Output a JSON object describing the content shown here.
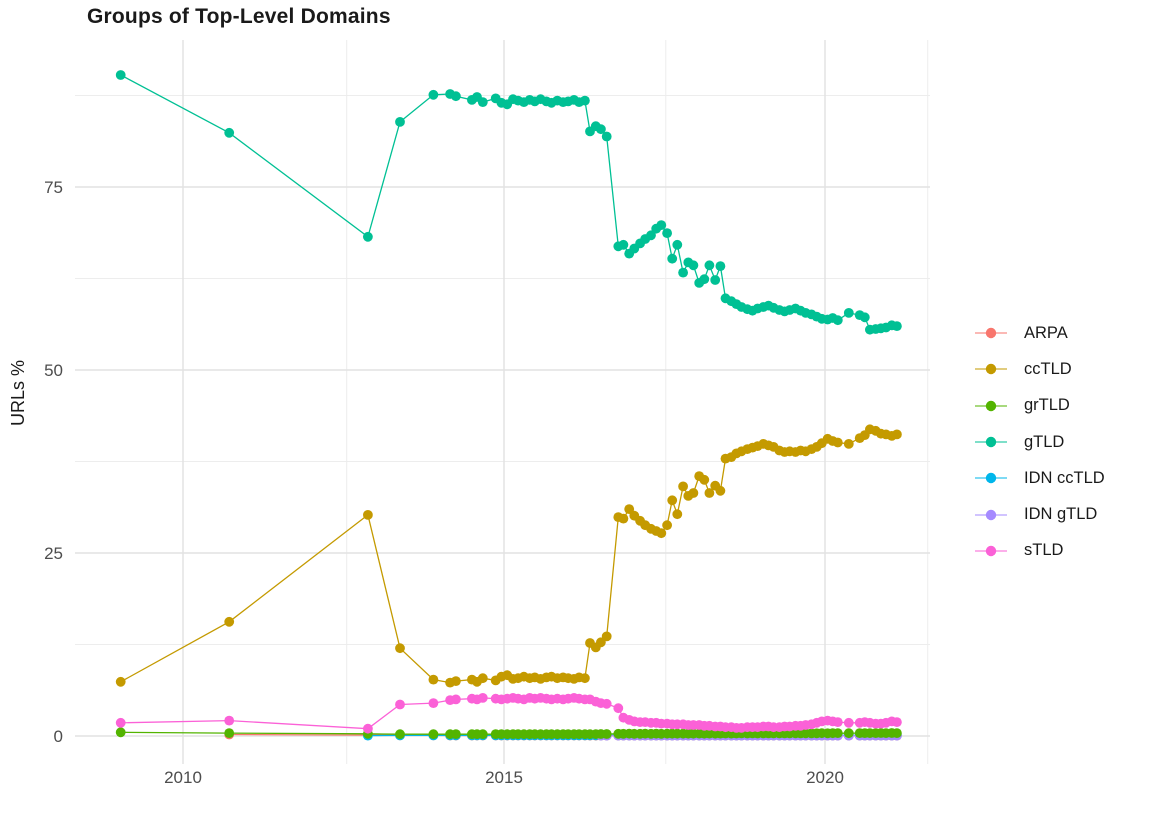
{
  "title": "Groups of Top-Level Domains",
  "axes": {
    "y_label": "URLs %",
    "y_tick_labels": [
      "0",
      "25",
      "50",
      "75"
    ],
    "x_tick_labels": [
      "2010",
      "2015",
      "2020"
    ]
  },
  "legend": {
    "items": [
      "ARPA",
      "ccTLD",
      "grTLD",
      "gTLD",
      "IDN ccTLD",
      "IDN gTLD",
      "sTLD"
    ]
  },
  "chart_data": {
    "type": "line",
    "title": "Groups of Top-Level Domains",
    "xlabel": "",
    "ylabel": "URLs %",
    "xlim": [
      2008.32,
      2021.64
    ],
    "ylim": [
      -3.8,
      95.1
    ],
    "x_ticks": [
      2010,
      2015,
      2020
    ],
    "y_ticks": [
      0,
      25,
      50,
      75
    ],
    "grid": {
      "on": true,
      "x_minor": [
        2012.55,
        2017.52,
        2021.6
      ],
      "y_minor": [
        12.5,
        37.5,
        62.5,
        87.5
      ],
      "major_color": "#e2e2e2",
      "minor_color": "#ededed"
    },
    "legend_position": "right",
    "tick_label_color": "#4d4d4d",
    "x_all": [
      2009.03,
      2010.72,
      2012.88,
      2013.38,
      2013.9,
      2014.16,
      2014.25,
      2014.5,
      2014.58,
      2014.67,
      2014.87,
      2014.96,
      2015.05,
      2015.14,
      2015.22,
      2015.31,
      2015.4,
      2015.48,
      2015.57,
      2015.66,
      2015.74,
      2015.83,
      2015.92,
      2016.0,
      2016.09,
      2016.17,
      2016.26,
      2016.34,
      2016.43,
      2016.51,
      2016.6,
      2016.78,
      2016.86,
      2016.95,
      2017.03,
      2017.12,
      2017.2,
      2017.29,
      2017.37,
      2017.45,
      2017.54,
      2017.62,
      2017.7,
      2017.79,
      2017.87,
      2017.95,
      2018.04,
      2018.12,
      2018.2,
      2018.29,
      2018.37,
      2018.45,
      2018.54,
      2018.62,
      2018.7,
      2018.79,
      2018.87,
      2018.95,
      2019.04,
      2019.12,
      2019.2,
      2019.29,
      2019.37,
      2019.45,
      2019.54,
      2019.62,
      2019.7,
      2019.79,
      2019.87,
      2019.95,
      2020.04,
      2020.12,
      2020.2,
      2020.37,
      2020.54,
      2020.62,
      2020.7,
      2020.79,
      2020.87,
      2020.95,
      2021.04,
      2021.12
    ],
    "series": [
      {
        "name": "ARPA",
        "color": "#F8766D",
        "start": 1,
        "y": [
          0.2,
          0.12,
          0.1,
          0.1,
          0.07,
          0.07,
          0.07,
          0.07,
          0.07,
          0.07,
          0.07,
          0.07,
          0.07,
          0.07,
          0.07,
          0.07,
          0.07,
          0.07,
          0.07,
          0.07,
          0.07,
          0.07,
          0.07,
          0.07,
          0.07,
          0.07,
          0.06,
          0.06,
          0.06,
          0.06,
          0.05,
          0.05,
          0.05,
          0.05,
          0.05,
          0.05,
          0.05,
          0.05,
          0.05,
          0.05,
          0.05,
          0.05,
          0.05,
          0.05,
          0.05,
          0.05,
          0.05,
          0.05,
          0.05,
          0.05,
          0.05,
          0.05,
          0.05,
          0.05,
          0.05,
          0.05,
          0.05,
          0.05,
          0.05,
          0.05,
          0.05,
          0.05,
          0.05,
          0.05,
          0.05,
          0.05,
          0.05,
          0.05,
          0.05,
          0.05,
          0.05,
          0.05,
          0.05,
          0.05,
          0.05,
          0.05,
          0.05,
          0.05,
          0.05,
          0.05,
          0.05
        ]
      },
      {
        "name": "ccTLD",
        "color": "#C49A00",
        "start": 0,
        "y": [
          7.4,
          15.6,
          30.2,
          12.0,
          7.7,
          7.3,
          7.5,
          7.7,
          7.4,
          7.9,
          7.6,
          8.1,
          8.3,
          7.8,
          7.9,
          8.1,
          7.9,
          8.0,
          7.8,
          8.0,
          8.1,
          7.9,
          8.0,
          7.9,
          7.8,
          8.0,
          7.9,
          12.7,
          12.1,
          12.8,
          13.6,
          29.9,
          29.7,
          31.0,
          30.1,
          29.4,
          28.8,
          28.3,
          28.0,
          27.7,
          28.8,
          32.2,
          30.3,
          34.1,
          32.8,
          33.2,
          35.5,
          35.0,
          33.2,
          34.2,
          33.5,
          37.9,
          38.1,
          38.6,
          38.9,
          39.2,
          39.4,
          39.6,
          39.9,
          39.7,
          39.5,
          39.0,
          38.8,
          38.9,
          38.8,
          39.0,
          38.9,
          39.2,
          39.5,
          40.0,
          40.6,
          40.3,
          40.1,
          39.9,
          40.7,
          41.1,
          41.9,
          41.7,
          41.3,
          41.2,
          41.0,
          41.2
        ]
      },
      {
        "name": "grTLD",
        "color": "#53B400",
        "start": 0,
        "y": [
          0.5,
          0.4,
          0.3,
          0.25,
          0.25,
          0.25,
          0.26,
          0.25,
          0.24,
          0.25,
          0.26,
          0.25,
          0.25,
          0.26,
          0.25,
          0.24,
          0.25,
          0.26,
          0.25,
          0.25,
          0.24,
          0.25,
          0.26,
          0.25,
          0.25,
          0.26,
          0.25,
          0.25,
          0.26,
          0.27,
          0.28,
          0.3,
          0.3,
          0.31,
          0.3,
          0.3,
          0.31,
          0.3,
          0.31,
          0.3,
          0.31,
          0.32,
          0.31,
          0.32,
          0.31,
          0.32,
          0.33,
          0.32,
          0.33,
          0.32,
          0.33,
          0.34,
          0.33,
          0.34,
          0.35,
          0.34,
          0.35,
          0.34,
          0.35,
          0.36,
          0.35,
          0.36,
          0.35,
          0.36,
          0.37,
          0.36,
          0.37,
          0.36,
          0.37,
          0.38,
          0.37,
          0.38,
          0.39,
          0.38,
          0.39,
          0.4,
          0.39,
          0.4,
          0.41,
          0.4,
          0.41,
          0.4
        ]
      },
      {
        "name": "gTLD",
        "color": "#00C094",
        "start": 0,
        "y": [
          90.3,
          82.4,
          68.2,
          83.9,
          87.6,
          87.7,
          87.4,
          86.9,
          87.3,
          86.6,
          87.1,
          86.5,
          86.3,
          87.0,
          86.8,
          86.6,
          86.9,
          86.7,
          87.0,
          86.7,
          86.5,
          86.8,
          86.6,
          86.7,
          86.9,
          86.6,
          86.8,
          82.6,
          83.3,
          82.9,
          81.9,
          66.9,
          67.1,
          65.9,
          66.6,
          67.3,
          67.9,
          68.4,
          69.3,
          69.8,
          68.7,
          65.2,
          67.1,
          63.3,
          64.7,
          64.3,
          61.9,
          62.4,
          64.3,
          62.3,
          64.2,
          59.8,
          59.4,
          59.0,
          58.6,
          58.3,
          58.1,
          58.4,
          58.6,
          58.8,
          58.5,
          58.2,
          58.0,
          58.2,
          58.4,
          58.1,
          57.8,
          57.6,
          57.3,
          57.0,
          56.9,
          57.1,
          56.8,
          57.8,
          57.5,
          57.2,
          55.5,
          55.6,
          55.7,
          55.8,
          56.1,
          56.0
        ]
      },
      {
        "name": "IDN ccTLD",
        "color": "#00B6EB",
        "start": 2,
        "y": [
          0.06,
          0.08,
          0.08,
          0.1,
          0.1,
          0.1,
          0.1,
          0.1,
          0.1,
          0.1,
          0.1,
          0.1,
          0.1,
          0.1,
          0.1,
          0.1,
          0.1,
          0.1,
          0.1,
          0.1,
          0.1,
          0.1,
          0.1,
          0.1,
          0.1,
          0.1,
          0.1,
          0.1,
          0.1,
          0.1,
          0.1,
          0.1,
          0.1,
          0.1,
          0.1,
          0.1,
          0.1,
          0.1,
          0.1,
          0.1,
          0.1,
          0.1,
          0.1,
          0.1,
          0.1,
          0.1,
          0.1,
          0.1,
          0.1,
          0.1,
          0.1,
          0.1,
          0.1,
          0.1,
          0.1,
          0.1,
          0.1,
          0.1,
          0.1,
          0.1,
          0.1,
          0.1,
          0.1,
          0.1,
          0.1,
          0.1,
          0.1,
          0.1,
          0.1,
          0.1,
          0.1,
          0.1,
          0.1,
          0.1,
          0.1,
          0.1,
          0.1,
          0.1,
          0.1,
          0.1
        ]
      },
      {
        "name": "IDN gTLD",
        "color": "#A58AFF",
        "start": 29,
        "y": [
          0.06,
          0.06,
          0.06,
          0.06,
          0.06,
          0.06,
          0.06,
          0.06,
          0.06,
          0.06,
          0.06,
          0.06,
          0.06,
          0.06,
          0.06,
          0.06,
          0.06,
          0.06,
          0.06,
          0.06,
          0.06,
          0.06,
          0.06,
          0.06,
          0.06,
          0.06,
          0.06,
          0.06,
          0.06,
          0.06,
          0.06,
          0.06,
          0.06,
          0.06,
          0.06,
          0.06,
          0.06,
          0.06,
          0.06,
          0.06,
          0.06,
          0.06,
          0.06,
          0.06,
          0.06,
          0.06,
          0.06,
          0.06,
          0.06,
          0.06,
          0.06,
          0.06,
          0.06
        ]
      },
      {
        "name": "sTLD",
        "color": "#FB61D7",
        "start": 0,
        "y": [
          1.8,
          2.1,
          1.0,
          4.3,
          4.5,
          4.9,
          5.0,
          5.1,
          5.0,
          5.2,
          5.1,
          5.0,
          5.1,
          5.2,
          5.1,
          5.0,
          5.2,
          5.1,
          5.2,
          5.1,
          5.0,
          5.1,
          5.0,
          5.1,
          5.2,
          5.1,
          5.0,
          5.0,
          4.7,
          4.5,
          4.4,
          3.8,
          2.5,
          2.2,
          2.0,
          1.9,
          1.9,
          1.8,
          1.8,
          1.7,
          1.7,
          1.6,
          1.6,
          1.6,
          1.5,
          1.5,
          1.5,
          1.4,
          1.4,
          1.3,
          1.3,
          1.2,
          1.2,
          1.1,
          1.1,
          1.2,
          1.2,
          1.2,
          1.3,
          1.3,
          1.2,
          1.2,
          1.3,
          1.3,
          1.4,
          1.4,
          1.5,
          1.6,
          1.8,
          2.0,
          2.1,
          2.0,
          1.9,
          1.8,
          1.8,
          1.9,
          1.8,
          1.7,
          1.7,
          1.8,
          2.0,
          1.9
        ]
      }
    ],
    "draw_order": [
      0,
      4,
      5,
      2,
      6,
      1,
      3
    ]
  }
}
